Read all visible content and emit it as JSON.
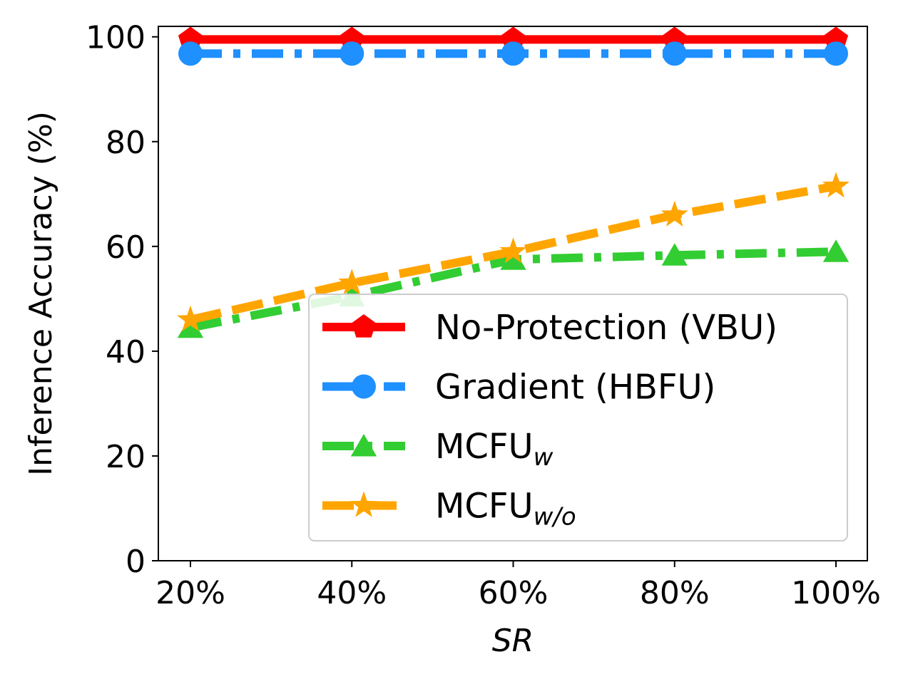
{
  "chart_data": {
    "type": "line",
    "title": "",
    "xlabel": "SR",
    "ylabel": "Inference Accuracy (%)",
    "categories": [
      "20%",
      "40%",
      "60%",
      "80%",
      "100%"
    ],
    "ylim": [
      0,
      102
    ],
    "yticks": [
      0,
      20,
      40,
      60,
      80,
      100
    ],
    "grid": false,
    "legend_position": "lower-right",
    "series": [
      {
        "name": "No-Protection (VBU)",
        "legend_main": "No-Protection (VBU)",
        "legend_sub": "",
        "color": "#ff0000",
        "line_style": "solid",
        "marker": "pentagon",
        "values": [
          99.5,
          99.5,
          99.5,
          99.5,
          99.5
        ]
      },
      {
        "name": "Gradient (HBFU)",
        "legend_main": "Gradient (HBFU)",
        "legend_sub": "",
        "color": "#1e90ff",
        "line_style": "dashdot",
        "marker": "circle",
        "values": [
          96.8,
          96.8,
          96.8,
          96.8,
          96.8
        ]
      },
      {
        "name": "MCFUw",
        "legend_main": "MCFU",
        "legend_sub": "w",
        "color": "#32cd32",
        "line_style": "dashdot",
        "marker": "triangle",
        "values": [
          44.5,
          50.5,
          57.5,
          58.3,
          59.0
        ]
      },
      {
        "name": "MCFUw/o",
        "legend_main": "MCFU",
        "legend_sub": "w/o",
        "color": "#ffa500",
        "line_style": "dashed",
        "marker": "star",
        "values": [
          46.0,
          53.0,
          59.0,
          66.0,
          71.5
        ]
      }
    ]
  }
}
